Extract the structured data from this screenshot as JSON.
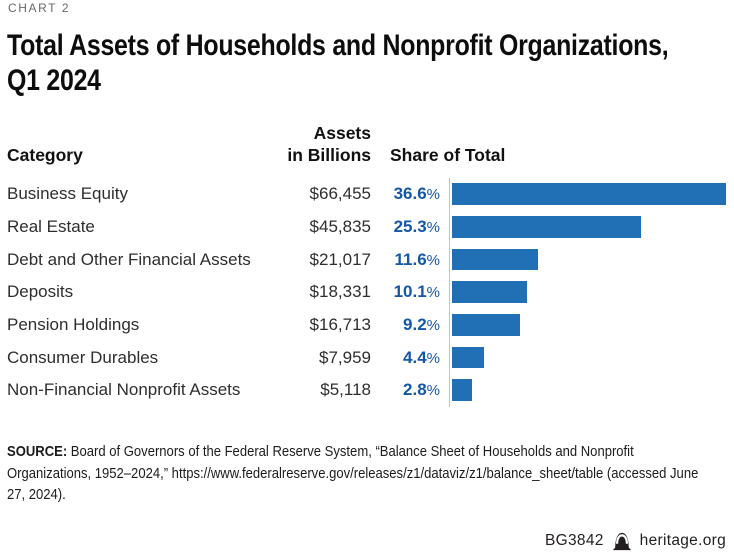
{
  "page": {
    "chart_label": "CHART 2",
    "title_line1": "Total Assets of Households and Nonprofit Organizations,",
    "title_line2": "Q1 2024"
  },
  "table": {
    "headers": {
      "category": "Category",
      "assets_line1": "Assets",
      "assets_line2": "in Billions",
      "share": "Share of Total"
    },
    "rows": [
      {
        "category": "Business Equity",
        "assets": "$66,455",
        "share": "36.6",
        "unit": "%"
      },
      {
        "category": "Real Estate",
        "assets": "$45,835",
        "share": "25.3",
        "unit": "%"
      },
      {
        "category": "Debt and Other Financial Assets",
        "assets": "$21,017",
        "share": "11.6",
        "unit": "%"
      },
      {
        "category": "Deposits",
        "assets": "$18,331",
        "share": "10.1",
        "unit": "%"
      },
      {
        "category": "Pension Holdings",
        "assets": "$16,713",
        "share": "9.2",
        "unit": "%"
      },
      {
        "category": "Consumer Durables",
        "assets": "$7,959",
        "share": "4.4",
        "unit": "%"
      },
      {
        "category": "Non-Financial Nonprofit Assets",
        "assets": "$5,118",
        "share": "2.8",
        "unit": "%"
      }
    ]
  },
  "chart_data": {
    "type": "bar",
    "orientation": "horizontal",
    "title": "Total Assets of Households and Nonprofit Organizations, Q1 2024",
    "categories": [
      "Business Equity",
      "Real Estate",
      "Debt and Other Financial Assets",
      "Deposits",
      "Pension Holdings",
      "Consumer Durables",
      "Non-Financial Nonprofit Assets"
    ],
    "series": [
      {
        "name": "Assets in Billions ($)",
        "values": [
          66455,
          45835,
          21017,
          18331,
          16713,
          7959,
          5118
        ]
      },
      {
        "name": "Share of Total (%)",
        "values": [
          36.6,
          25.3,
          11.6,
          10.1,
          9.2,
          4.4,
          2.8
        ]
      }
    ],
    "bar_value_series": "Share of Total (%)",
    "xlim": [
      0,
      36.6
    ],
    "grid": false,
    "legend": "none"
  },
  "source": {
    "label": "SOURCE:",
    "text": " Board of Governors of the Federal Reserve System, “Balance Sheet of Households and Nonprofit Organizations, 1952–2024,” https://www.federalreserve.gov/releases/z1/dataviz/z1/balance_sheet/table (accessed June 27, 2024)."
  },
  "footer": {
    "report_id": "BG3842",
    "site": "heritage.org",
    "icon": "liberty-bell-icon"
  },
  "colors": {
    "bar": "#2170b5",
    "percent_text": "#1357a6",
    "axis_line": "#c4c4c4",
    "chart_label_text": "#66696d",
    "title_text": "#0d0d0d"
  }
}
